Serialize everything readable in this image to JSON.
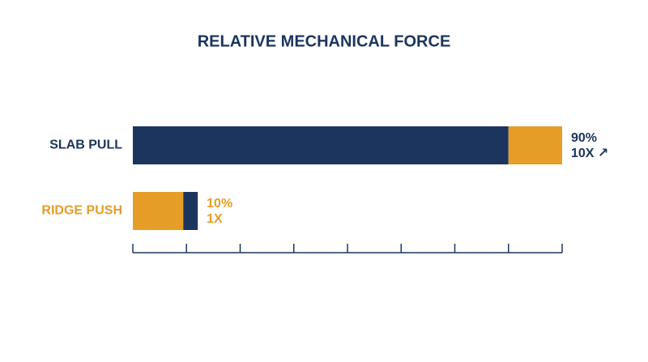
{
  "chart_data": {
    "type": "stacked-bar-horizontal",
    "title": "RELATIVE MECHANICAL FORCE",
    "categories": [
      "SLAB PULL",
      "RIDGE PUSH"
    ],
    "category_colors": [
      "#1c355e",
      "#e59d27"
    ],
    "series": [
      {
        "values": [
          7,
          0.94
        ],
        "colors": [
          "#1c355e",
          "#e59d27"
        ]
      },
      {
        "values": [
          1,
          0.27
        ],
        "colors": [
          "#e59d27",
          "#1c355e"
        ]
      }
    ],
    "annotations": [
      {
        "lines": [
          "90%",
          "10X ↗"
        ],
        "color": "#1c355e"
      },
      {
        "lines": [
          "10%",
          "1X"
        ],
        "color": "#e59d27"
      }
    ],
    "xlim": [
      0,
      8
    ],
    "xticks": [
      0,
      1,
      2,
      3,
      4,
      5,
      6,
      7,
      8
    ],
    "axis_color": "#1c355e"
  }
}
